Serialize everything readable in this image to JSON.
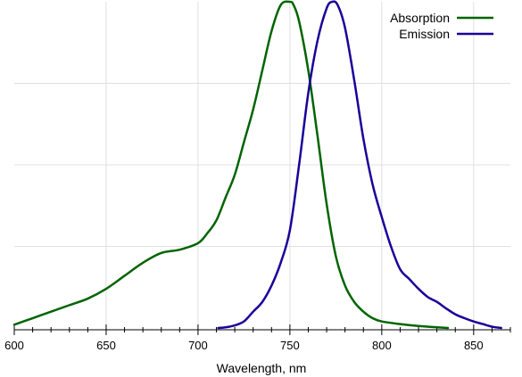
{
  "chart_data": {
    "type": "line",
    "title": "",
    "xlabel": "Wavelength, nm",
    "ylabel": "",
    "xlim": [
      600,
      870
    ],
    "ylim": [
      0,
      1
    ],
    "x_ticks": [
      600,
      650,
      700,
      750,
      800,
      850
    ],
    "x_minor_step": 10,
    "y_gridlines": [
      0.25,
      0.5,
      0.75
    ],
    "grid": true,
    "legend_position": "top-right",
    "series": [
      {
        "name": "Absorption",
        "color": "#006400",
        "x": [
          600,
          610,
          620,
          630,
          640,
          650,
          660,
          670,
          680,
          690,
          700,
          705,
          710,
          715,
          720,
          725,
          730,
          735,
          740,
          745,
          750,
          752,
          755,
          760,
          765,
          770,
          775,
          780,
          785,
          790,
          795,
          800,
          810,
          820,
          830,
          836
        ],
        "y": [
          0.01,
          0.03,
          0.05,
          0.07,
          0.09,
          0.12,
          0.16,
          0.2,
          0.23,
          0.24,
          0.26,
          0.29,
          0.33,
          0.4,
          0.47,
          0.57,
          0.67,
          0.79,
          0.91,
          0.99,
          1.0,
          0.99,
          0.94,
          0.79,
          0.59,
          0.38,
          0.22,
          0.13,
          0.08,
          0.05,
          0.03,
          0.02,
          0.012,
          0.006,
          0.002,
          0.0
        ]
      },
      {
        "name": "Emission",
        "color": "#1a0099",
        "x": [
          711,
          715,
          720,
          725,
          730,
          735,
          740,
          745,
          750,
          755,
          760,
          765,
          770,
          773,
          776,
          780,
          785,
          790,
          795,
          800,
          805,
          810,
          815,
          820,
          825,
          830,
          835,
          840,
          845,
          850,
          855,
          860,
          865
        ],
        "y": [
          0.0,
          0.002,
          0.008,
          0.02,
          0.05,
          0.08,
          0.13,
          0.2,
          0.3,
          0.5,
          0.72,
          0.88,
          0.98,
          1.0,
          0.99,
          0.92,
          0.76,
          0.58,
          0.44,
          0.34,
          0.25,
          0.18,
          0.15,
          0.12,
          0.095,
          0.08,
          0.06,
          0.042,
          0.03,
          0.02,
          0.012,
          0.004,
          0.0
        ]
      }
    ]
  }
}
